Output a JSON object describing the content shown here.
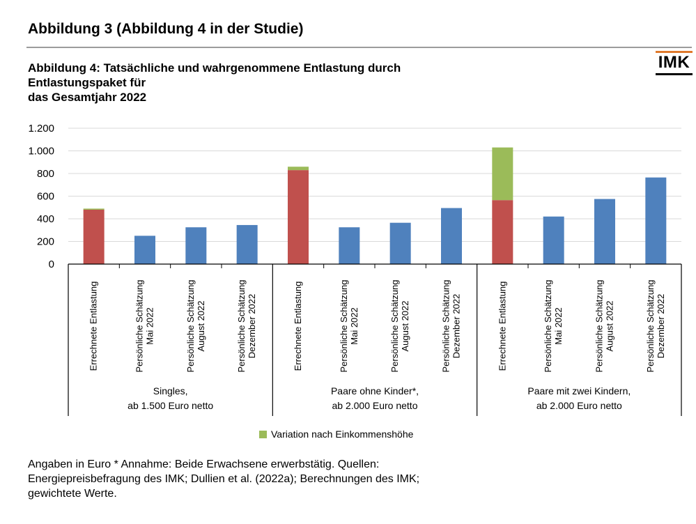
{
  "page": {
    "heading": "Abbildung 3 (Abbildung 4 in der Studie)",
    "logo": "IMK",
    "colors": {
      "logo_accent": "#e07a2c",
      "rule": "#9b9b9b"
    }
  },
  "figure": {
    "title_lines": [
      "Abbildung 4: Tatsächliche und wahrgenommene Entlastung durch",
      "Entlastungspaket für",
      "das Gesamtjahr 2022"
    ],
    "legend_label": "Variation nach Einkommenshöhe",
    "notes": [
      "Angaben in Euro  * Annahme: Beide Erwachsene erwerbstätig. Quellen:",
      "Energiepreisbefragung des IMK; Dullien et al. (2022a); Berechnungen des IMK;",
      "gewichtete Werte."
    ]
  },
  "chart_data": {
    "type": "bar",
    "stacked": true,
    "title": "Abbildung 4: Tatsächliche und wahrgenommene Entlastung durch Entlastungspaket für das Gesamtjahr 2022",
    "ylabel": "",
    "ylim": [
      0,
      1200
    ],
    "yticks": [
      0,
      200,
      400,
      600,
      800,
      1000,
      1200
    ],
    "ytick_labels": [
      "0",
      "200",
      "400",
      "600",
      "800",
      "1.000",
      "1.200"
    ],
    "grid": "horizontal",
    "legend": {
      "placement": "bottom",
      "entries": [
        "Variation nach Einkommenshöhe"
      ]
    },
    "groups": [
      {
        "label_lines": [
          "Singles,",
          "ab 1.500 Euro netto"
        ],
        "bars": [
          {
            "label_lines": [
              "Errechnete Entlastung"
            ],
            "base": 480,
            "variation": 10,
            "base_color": "#c0504d"
          },
          {
            "label_lines": [
              "Persönliche Schätzung",
              "Mai 2022"
            ],
            "base": 250,
            "variation": 0,
            "base_color": "#4f81bd"
          },
          {
            "label_lines": [
              "Persönliche Schätzung",
              "August 2022"
            ],
            "base": 325,
            "variation": 0,
            "base_color": "#4f81bd"
          },
          {
            "label_lines": [
              "Persönliche Schätzung",
              "Dezember 2022"
            ],
            "base": 345,
            "variation": 0,
            "base_color": "#4f81bd"
          }
        ]
      },
      {
        "label_lines": [
          "Paare ohne Kinder*,",
          "ab 2.000 Euro netto"
        ],
        "bars": [
          {
            "label_lines": [
              "Errechnete Entlastung"
            ],
            "base": 830,
            "variation": 30,
            "base_color": "#c0504d"
          },
          {
            "label_lines": [
              "Persönliche Schätzung",
              "Mai 2022"
            ],
            "base": 325,
            "variation": 0,
            "base_color": "#4f81bd"
          },
          {
            "label_lines": [
              "Persönliche Schätzung",
              "August 2022"
            ],
            "base": 365,
            "variation": 0,
            "base_color": "#4f81bd"
          },
          {
            "label_lines": [
              "Persönliche Schätzung",
              "Dezember 2022"
            ],
            "base": 495,
            "variation": 0,
            "base_color": "#4f81bd"
          }
        ]
      },
      {
        "label_lines": [
          "Paare mit zwei Kindern,",
          "ab 2.000 Euro netto"
        ],
        "bars": [
          {
            "label_lines": [
              "Errechnete Entlastung"
            ],
            "base": 565,
            "variation": 465,
            "base_color": "#c0504d"
          },
          {
            "label_lines": [
              "Persönliche Schätzung",
              "Mai 2022"
            ],
            "base": 420,
            "variation": 0,
            "base_color": "#4f81bd"
          },
          {
            "label_lines": [
              "Persönliche Schätzung",
              "August 2022"
            ],
            "base": 575,
            "variation": 0,
            "base_color": "#4f81bd"
          },
          {
            "label_lines": [
              "Persönliche Schätzung",
              "Dezember 2022"
            ],
            "base": 765,
            "variation": 0,
            "base_color": "#4f81bd"
          }
        ]
      }
    ],
    "colors": {
      "calculated": "#c0504d",
      "estimate": "#4f81bd",
      "variation": "#9bbb59",
      "grid": "#d9d9d9"
    }
  }
}
